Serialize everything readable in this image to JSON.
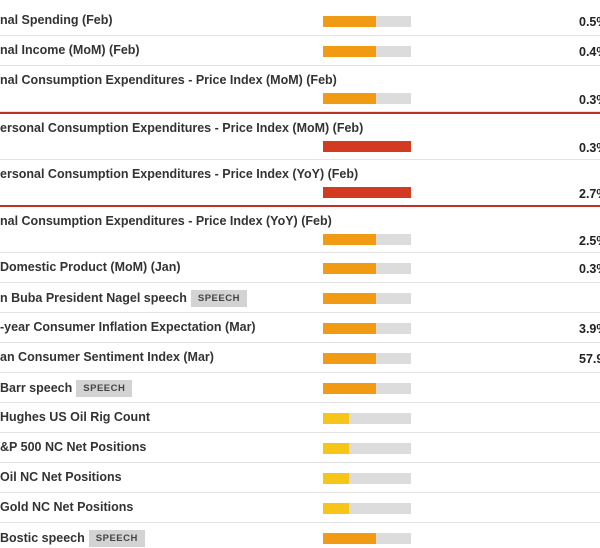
{
  "events": [
    {
      "title": "nal Spending (Feb)",
      "impact": "medium",
      "actual": "0.5%"
    },
    {
      "title": "nal Income (MoM) (Feb)",
      "impact": "medium",
      "actual": "0.4%"
    },
    {
      "title": "nal Consumption Expenditures - Price Index (MoM) (Feb)",
      "impact": "medium",
      "actual": "0.3%",
      "tall": true
    },
    {
      "title": "ersonal Consumption Expenditures - Price Index (MoM) (Feb)",
      "impact": "high",
      "actual": "0.3%",
      "tall": true,
      "highlight": true
    },
    {
      "title": "ersonal Consumption Expenditures - Price Index (YoY) (Feb)",
      "impact": "high",
      "actual": "2.7%",
      "tall": true,
      "highlight": true
    },
    {
      "title": "nal Consumption Expenditures - Price Index (YoY) (Feb)",
      "impact": "medium",
      "actual": "2.5%",
      "tall": true
    },
    {
      "title": "Domestic Product (MoM) (Jan)",
      "impact": "medium",
      "actual": "0.3%"
    },
    {
      "title": "n Buba President Nagel speech",
      "impact": "medium",
      "tag": "SPEECH"
    },
    {
      "title": "-year Consumer Inflation Expectation (Mar)",
      "impact": "medium",
      "actual": "3.9%"
    },
    {
      "title": "an Consumer Sentiment Index (Mar)",
      "impact": "medium",
      "actual": "57.9"
    },
    {
      "title": "Barr speech",
      "impact": "medium",
      "tag": "SPEECH"
    },
    {
      "title": "Hughes US Oil Rig Count",
      "impact": "low"
    },
    {
      "title": "&P 500 NC Net Positions",
      "impact": "low"
    },
    {
      "title": "Oil NC Net Positions",
      "impact": "low"
    },
    {
      "title": "Gold NC Net Positions",
      "impact": "low"
    },
    {
      "title": "Bostic speech",
      "impact": "medium",
      "tag": "SPEECH"
    }
  ]
}
